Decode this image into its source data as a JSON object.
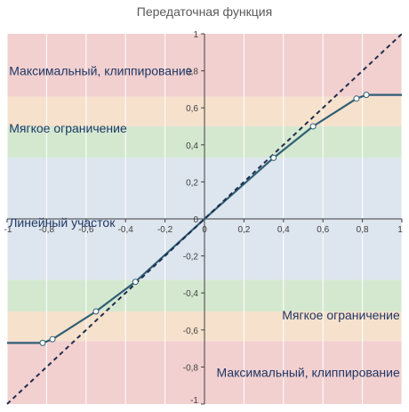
{
  "chart_data": {
    "type": "line",
    "title": "Передаточная функция",
    "xlabel": "",
    "ylabel": "",
    "xlim": [
      -1,
      1
    ],
    "ylim": [
      -1,
      1
    ],
    "x_ticks": [
      "-1",
      "-0,8",
      "-0,6",
      "-0,4",
      "-0,2",
      "0",
      "0,2",
      "0,4",
      "0,6",
      "0,8",
      "1"
    ],
    "y_ticks": [
      "-1",
      "-0,8",
      "-0,6",
      "-0,4",
      "-0,2",
      "0",
      "0,2",
      "0,4",
      "0,6",
      "0,8",
      "1"
    ],
    "grid": true,
    "legend": "none",
    "bands": [
      {
        "y_from": 0.66,
        "y_to": 1.0,
        "color": "#f2d0d0"
      },
      {
        "y_from": 0.5,
        "y_to": 0.66,
        "color": "#f6e1cc"
      },
      {
        "y_from": 0.33,
        "y_to": 0.5,
        "color": "#d4e8d0"
      },
      {
        "y_from": -0.33,
        "y_to": 0.33,
        "color": "#dde5ee"
      },
      {
        "y_from": -0.5,
        "y_to": -0.33,
        "color": "#d4e8d0"
      },
      {
        "y_from": -0.66,
        "y_to": -0.5,
        "color": "#f6e1cc"
      },
      {
        "y_from": -1.0,
        "y_to": -0.66,
        "color": "#f2d0d0"
      }
    ],
    "zone_labels": [
      {
        "text": "Максимальный, клиппирование",
        "x": -0.99,
        "y": 0.8,
        "anchor": "start"
      },
      {
        "text": "Мягкое ограничение",
        "x": -0.99,
        "y": 0.49,
        "anchor": "start"
      },
      {
        "text": "Линейный участок",
        "x": -0.99,
        "y": -0.02,
        "anchor": "start"
      },
      {
        "text": "Мягкое ограничение",
        "x": 0.99,
        "y": -0.52,
        "anchor": "end"
      },
      {
        "text": "Максимальный, клиппирование",
        "x": 0.99,
        "y": -0.83,
        "anchor": "end"
      }
    ],
    "series": [
      {
        "role": "transfer",
        "color": "#2f5f73",
        "marker": "circle",
        "x": [
          -1.0,
          -0.82,
          -0.77,
          -0.55,
          -0.35,
          0.0,
          0.35,
          0.55,
          0.77,
          0.82,
          1.0
        ],
        "y": [
          -0.67,
          -0.67,
          -0.65,
          -0.5,
          -0.34,
          0.0,
          0.33,
          0.5,
          0.65,
          0.67,
          0.67
        ],
        "markers": [
          false,
          true,
          true,
          true,
          true,
          false,
          true,
          true,
          true,
          true,
          false
        ]
      },
      {
        "role": "linear-reference",
        "color": "#1f2d4d",
        "dash": "dashed",
        "x": [
          -1.0,
          1.0
        ],
        "y": [
          -1.0,
          1.0
        ]
      }
    ]
  },
  "colors": {
    "axis": "#404040",
    "grid": "#ffffff",
    "marker_fill": "#ffffff"
  }
}
